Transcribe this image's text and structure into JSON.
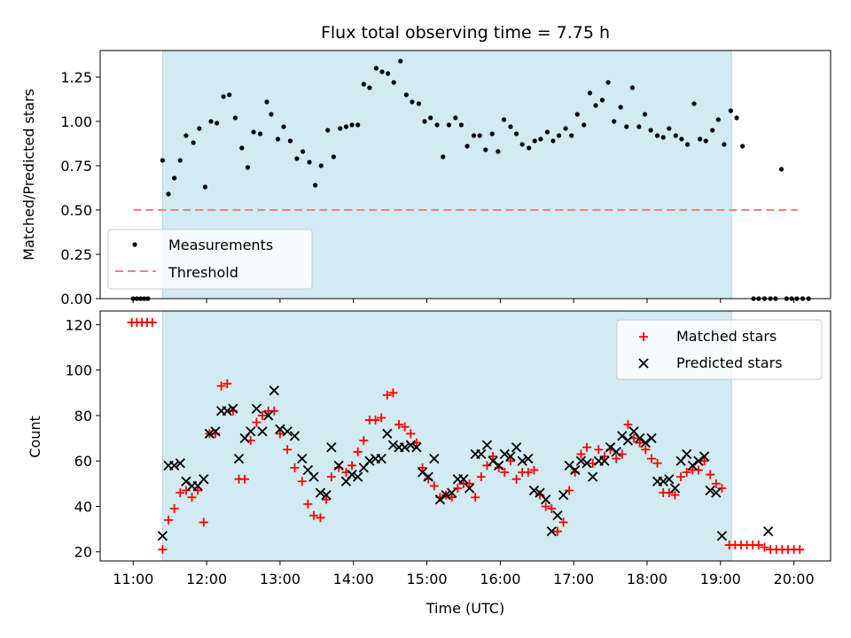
{
  "chart_data": {
    "type": "scatter",
    "title": "Flux total observing time = 7.75 h",
    "xlabel": "Time (UTC)",
    "x_ticks": [
      "11:00",
      "12:00",
      "13:00",
      "14:00",
      "15:00",
      "16:00",
      "17:00",
      "18:00",
      "19:00",
      "20:00"
    ],
    "xlim_hours": [
      10.55,
      20.5
    ],
    "shaded_region_hours": [
      11.4,
      19.15
    ],
    "colors": {
      "shade": "#add8e6",
      "measurement": "#000000",
      "threshold": "#f08080",
      "matched": "#ff0000",
      "predicted": "#000000"
    },
    "top_panel": {
      "ylabel": "Matched/Predicted stars",
      "ylim": [
        0,
        1.4
      ],
      "y_ticks": [
        "0.00",
        "0.25",
        "0.50",
        "0.75",
        "1.00",
        "1.25"
      ],
      "threshold": 0.5,
      "threshold_x_range_hours": [
        11.0,
        20.05
      ],
      "legend": {
        "position": "lower-left",
        "entries": [
          "Measurements",
          "Threshold"
        ]
      },
      "points": [
        [
          11.0,
          0
        ],
        [
          11.05,
          0
        ],
        [
          11.1,
          0
        ],
        [
          11.15,
          0
        ],
        [
          11.2,
          0
        ],
        [
          11.4,
          0.78
        ],
        [
          11.48,
          0.59
        ],
        [
          11.56,
          0.68
        ],
        [
          11.64,
          0.78
        ],
        [
          11.72,
          0.92
        ],
        [
          11.82,
          0.88
        ],
        [
          11.9,
          0.96
        ],
        [
          11.98,
          0.63
        ],
        [
          12.06,
          1.0
        ],
        [
          12.14,
          0.99
        ],
        [
          12.23,
          1.14
        ],
        [
          12.31,
          1.15
        ],
        [
          12.39,
          1.02
        ],
        [
          12.48,
          0.85
        ],
        [
          12.56,
          0.74
        ],
        [
          12.64,
          0.94
        ],
        [
          12.73,
          0.93
        ],
        [
          12.82,
          1.11
        ],
        [
          12.88,
          1.04
        ],
        [
          12.97,
          0.9
        ],
        [
          13.05,
          0.97
        ],
        [
          13.14,
          0.89
        ],
        [
          13.23,
          0.79
        ],
        [
          13.31,
          0.83
        ],
        [
          13.4,
          0.77
        ],
        [
          13.48,
          0.64
        ],
        [
          13.56,
          0.75
        ],
        [
          13.65,
          0.95
        ],
        [
          13.73,
          0.8
        ],
        [
          13.82,
          0.96
        ],
        [
          13.9,
          0.97
        ],
        [
          13.98,
          0.98
        ],
        [
          14.06,
          0.98
        ],
        [
          14.14,
          1.21
        ],
        [
          14.22,
          1.19
        ],
        [
          14.31,
          1.3
        ],
        [
          14.39,
          1.28
        ],
        [
          14.47,
          1.27
        ],
        [
          14.55,
          1.22
        ],
        [
          14.64,
          1.34
        ],
        [
          14.72,
          1.15
        ],
        [
          14.8,
          1.11
        ],
        [
          14.89,
          1.1
        ],
        [
          14.97,
          1.0
        ],
        [
          15.05,
          1.02
        ],
        [
          15.14,
          0.98
        ],
        [
          15.22,
          0.8
        ],
        [
          15.3,
          0.98
        ],
        [
          15.39,
          1.02
        ],
        [
          15.47,
          0.98
        ],
        [
          15.55,
          0.86
        ],
        [
          15.64,
          0.92
        ],
        [
          15.72,
          0.92
        ],
        [
          15.8,
          0.84
        ],
        [
          15.89,
          0.93
        ],
        [
          15.97,
          0.83
        ],
        [
          16.05,
          1.01
        ],
        [
          16.14,
          0.97
        ],
        [
          16.22,
          0.93
        ],
        [
          16.3,
          0.87
        ],
        [
          16.39,
          0.85
        ],
        [
          16.47,
          0.89
        ],
        [
          16.55,
          0.9
        ],
        [
          16.64,
          0.94
        ],
        [
          16.72,
          0.89
        ],
        [
          16.8,
          0.92
        ],
        [
          16.89,
          0.96
        ],
        [
          16.97,
          0.92
        ],
        [
          17.05,
          1.04
        ],
        [
          17.14,
          0.98
        ],
        [
          17.22,
          1.16
        ],
        [
          17.3,
          1.09
        ],
        [
          17.39,
          1.12
        ],
        [
          17.47,
          1.22
        ],
        [
          17.55,
          1.0
        ],
        [
          17.64,
          1.08
        ],
        [
          17.72,
          0.97
        ],
        [
          17.8,
          1.19
        ],
        [
          17.89,
          0.97
        ],
        [
          17.97,
          1.04
        ],
        [
          18.05,
          0.95
        ],
        [
          18.14,
          0.92
        ],
        [
          18.22,
          0.91
        ],
        [
          18.3,
          0.96
        ],
        [
          18.39,
          0.92
        ],
        [
          18.47,
          0.9
        ],
        [
          18.55,
          0.87
        ],
        [
          18.64,
          1.1
        ],
        [
          18.72,
          0.9
        ],
        [
          18.8,
          0.89
        ],
        [
          18.89,
          0.95
        ],
        [
          18.97,
          1.01
        ],
        [
          19.05,
          0.87
        ],
        [
          19.14,
          1.06
        ],
        [
          19.22,
          1.02
        ],
        [
          19.3,
          0.86
        ],
        [
          19.45,
          0
        ],
        [
          19.52,
          0
        ],
        [
          19.6,
          0
        ],
        [
          19.68,
          0
        ],
        [
          19.75,
          0
        ],
        [
          19.83,
          0.73
        ],
        [
          19.9,
          0
        ],
        [
          19.97,
          0
        ],
        [
          20.04,
          0
        ],
        [
          20.12,
          0
        ],
        [
          20.2,
          0
        ]
      ]
    },
    "bottom_panel": {
      "ylabel": "Count",
      "ylim": [
        16,
        126
      ],
      "y_ticks": [
        "20",
        "40",
        "60",
        "80",
        "100",
        "120"
      ],
      "legend": {
        "position": "top-right",
        "entries": [
          "Matched stars",
          "Predicted stars"
        ]
      },
      "matched": [
        [
          10.98,
          121
        ],
        [
          11.05,
          121
        ],
        [
          11.12,
          121
        ],
        [
          11.19,
          121
        ],
        [
          11.26,
          121
        ],
        [
          11.4,
          21
        ],
        [
          11.48,
          34
        ],
        [
          11.56,
          39
        ],
        [
          11.64,
          46
        ],
        [
          11.72,
          47
        ],
        [
          11.8,
          44
        ],
        [
          11.88,
          47
        ],
        [
          11.96,
          33
        ],
        [
          12.04,
          72
        ],
        [
          12.12,
          72
        ],
        [
          12.2,
          93
        ],
        [
          12.28,
          94
        ],
        [
          12.36,
          82
        ],
        [
          12.44,
          52
        ],
        [
          12.52,
          52
        ],
        [
          12.6,
          69
        ],
        [
          12.68,
          77
        ],
        [
          12.76,
          80
        ],
        [
          12.84,
          82
        ],
        [
          12.92,
          82
        ],
        [
          13.0,
          72
        ],
        [
          13.1,
          65
        ],
        [
          13.2,
          57
        ],
        [
          13.3,
          51
        ],
        [
          13.38,
          41
        ],
        [
          13.46,
          36
        ],
        [
          13.55,
          35
        ],
        [
          13.63,
          43
        ],
        [
          13.7,
          53
        ],
        [
          13.8,
          57
        ],
        [
          13.9,
          55
        ],
        [
          13.98,
          58
        ],
        [
          14.06,
          64
        ],
        [
          14.14,
          69
        ],
        [
          14.22,
          78
        ],
        [
          14.3,
          78
        ],
        [
          14.38,
          79
        ],
        [
          14.46,
          89
        ],
        [
          14.54,
          90
        ],
        [
          14.62,
          76
        ],
        [
          14.7,
          75
        ],
        [
          14.78,
          72
        ],
        [
          14.86,
          68
        ],
        [
          14.94,
          57
        ],
        [
          15.02,
          52
        ],
        [
          15.1,
          49
        ],
        [
          15.18,
          44
        ],
        [
          15.26,
          45
        ],
        [
          15.34,
          44
        ],
        [
          15.42,
          48
        ],
        [
          15.5,
          50
        ],
        [
          15.58,
          50
        ],
        [
          15.66,
          44
        ],
        [
          15.74,
          53
        ],
        [
          15.82,
          58
        ],
        [
          15.9,
          62
        ],
        [
          15.98,
          57
        ],
        [
          16.06,
          55
        ],
        [
          16.14,
          60
        ],
        [
          16.22,
          52
        ],
        [
          16.3,
          55
        ],
        [
          16.38,
          55
        ],
        [
          16.46,
          56
        ],
        [
          16.54,
          45
        ],
        [
          16.62,
          40
        ],
        [
          16.7,
          39
        ],
        [
          16.78,
          29
        ],
        [
          16.86,
          33
        ],
        [
          16.94,
          47
        ],
        [
          17.02,
          55
        ],
        [
          17.1,
          63
        ],
        [
          17.18,
          66
        ],
        [
          17.26,
          59
        ],
        [
          17.34,
          65
        ],
        [
          17.42,
          62
        ],
        [
          17.5,
          65
        ],
        [
          17.58,
          61
        ],
        [
          17.66,
          63
        ],
        [
          17.74,
          76
        ],
        [
          17.82,
          70
        ],
        [
          17.9,
          68
        ],
        [
          17.98,
          65
        ],
        [
          18.06,
          61
        ],
        [
          18.14,
          59
        ],
        [
          18.22,
          46
        ],
        [
          18.3,
          46
        ],
        [
          18.38,
          45
        ],
        [
          18.46,
          53
        ],
        [
          18.54,
          55
        ],
        [
          18.62,
          56
        ],
        [
          18.7,
          56
        ],
        [
          18.78,
          60
        ],
        [
          18.86,
          54
        ],
        [
          18.94,
          50
        ],
        [
          19.02,
          48
        ],
        [
          19.12,
          23
        ],
        [
          19.2,
          23
        ],
        [
          19.28,
          23
        ],
        [
          19.36,
          23
        ],
        [
          19.44,
          23
        ],
        [
          19.52,
          23
        ],
        [
          19.6,
          22
        ],
        [
          19.68,
          21
        ],
        [
          19.76,
          21
        ],
        [
          19.84,
          21
        ],
        [
          19.92,
          21
        ],
        [
          20.0,
          21
        ],
        [
          20.08,
          21
        ]
      ],
      "predicted": [
        [
          11.4,
          27
        ],
        [
          11.48,
          58
        ],
        [
          11.56,
          58
        ],
        [
          11.64,
          59
        ],
        [
          11.72,
          51
        ],
        [
          11.8,
          49
        ],
        [
          11.88,
          49
        ],
        [
          11.96,
          52
        ],
        [
          12.04,
          72
        ],
        [
          12.12,
          73
        ],
        [
          12.2,
          82
        ],
        [
          12.28,
          82
        ],
        [
          12.36,
          83
        ],
        [
          12.44,
          61
        ],
        [
          12.52,
          70
        ],
        [
          12.6,
          73
        ],
        [
          12.68,
          83
        ],
        [
          12.76,
          73
        ],
        [
          12.84,
          80
        ],
        [
          12.92,
          91
        ],
        [
          13.0,
          74
        ],
        [
          13.1,
          73
        ],
        [
          13.2,
          71
        ],
        [
          13.3,
          61
        ],
        [
          13.38,
          56
        ],
        [
          13.46,
          53
        ],
        [
          13.55,
          46
        ],
        [
          13.63,
          45
        ],
        [
          13.7,
          66
        ],
        [
          13.8,
          58
        ],
        [
          13.9,
          51
        ],
        [
          13.98,
          54
        ],
        [
          14.06,
          53
        ],
        [
          14.14,
          57
        ],
        [
          14.22,
          60
        ],
        [
          14.3,
          61
        ],
        [
          14.38,
          61
        ],
        [
          14.46,
          72
        ],
        [
          14.54,
          67
        ],
        [
          14.62,
          66
        ],
        [
          14.7,
          66
        ],
        [
          14.78,
          67
        ],
        [
          14.86,
          66
        ],
        [
          14.94,
          55
        ],
        [
          15.02,
          53
        ],
        [
          15.1,
          61
        ],
        [
          15.18,
          43
        ],
        [
          15.26,
          45
        ],
        [
          15.34,
          46
        ],
        [
          15.42,
          52
        ],
        [
          15.5,
          52
        ],
        [
          15.58,
          48
        ],
        [
          15.66,
          63
        ],
        [
          15.74,
          63
        ],
        [
          15.82,
          67
        ],
        [
          15.9,
          60
        ],
        [
          15.98,
          58
        ],
        [
          16.06,
          63
        ],
        [
          16.14,
          62
        ],
        [
          16.22,
          66
        ],
        [
          16.3,
          60
        ],
        [
          16.38,
          61
        ],
        [
          16.46,
          47
        ],
        [
          16.54,
          46
        ],
        [
          16.62,
          43
        ],
        [
          16.7,
          29
        ],
        [
          16.78,
          36
        ],
        [
          16.86,
          45
        ],
        [
          16.94,
          58
        ],
        [
          17.02,
          56
        ],
        [
          17.1,
          60
        ],
        [
          17.18,
          59
        ],
        [
          17.26,
          53
        ],
        [
          17.34,
          60
        ],
        [
          17.42,
          60
        ],
        [
          17.5,
          66
        ],
        [
          17.58,
          64
        ],
        [
          17.66,
          71
        ],
        [
          17.74,
          69
        ],
        [
          17.82,
          73
        ],
        [
          17.9,
          70
        ],
        [
          17.98,
          68
        ],
        [
          18.06,
          70
        ],
        [
          18.14,
          51
        ],
        [
          18.22,
          51
        ],
        [
          18.3,
          52
        ],
        [
          18.38,
          48
        ],
        [
          18.46,
          60
        ],
        [
          18.54,
          63
        ],
        [
          18.62,
          58
        ],
        [
          18.7,
          60
        ],
        [
          18.78,
          62
        ],
        [
          18.86,
          47
        ],
        [
          18.94,
          46
        ],
        [
          19.02,
          27
        ],
        [
          19.65,
          29
        ]
      ]
    }
  }
}
